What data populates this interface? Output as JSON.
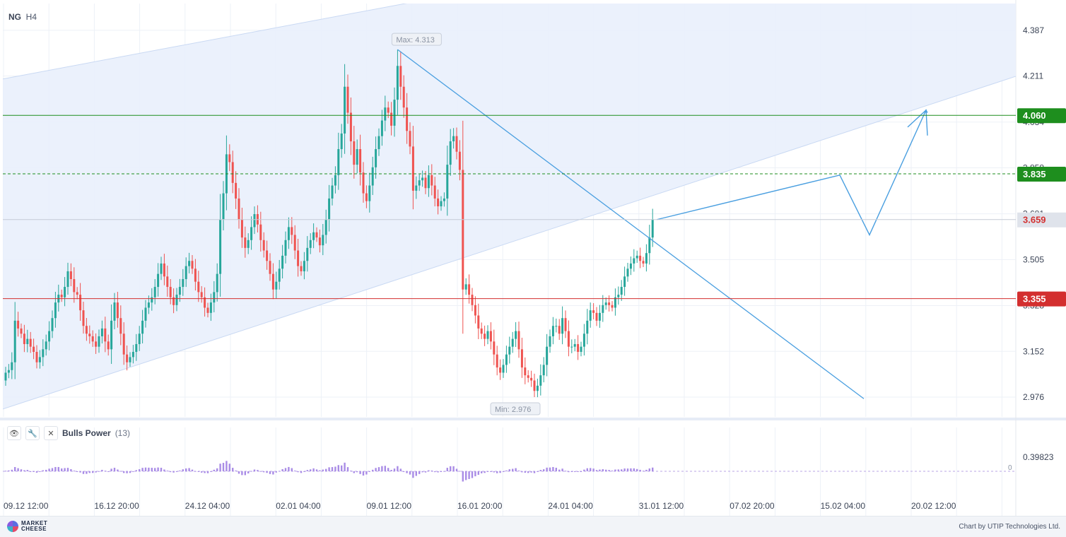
{
  "header": {
    "symbol": "NG",
    "timeframe": "H4"
  },
  "indicator": {
    "name": "Bulls Power",
    "param": "(13)",
    "eye_icon": "eye-icon",
    "settings_icon": "wrench-icon",
    "close_icon": "close-icon"
  },
  "footer": {
    "logo_line1": "MARKET",
    "logo_line2": "CHEESE",
    "credit": "Chart by UTIP Technologies Ltd."
  },
  "colors": {
    "up": "#26a69a",
    "down": "#ef5350",
    "channel": "#dbe6f8",
    "trend": "#4a9fe0",
    "support": "#d32f2f",
    "resistance": "#1e8e1e",
    "bulls": "#a98ce6"
  },
  "chart_data": [
    {
      "type": "candlestick",
      "price_axis": {
        "ticks": [
          "4.387",
          "4.211",
          "4.034",
          "3.858",
          "3.681",
          "3.505",
          "3.328",
          "3.152",
          "2.976"
        ],
        "range": [
          2.9,
          4.49
        ]
      },
      "time_axis": {
        "labels": [
          "09.12 12:00",
          "16.12 20:00",
          "24.12 04:00",
          "02.01 04:00",
          "09.01 12:00",
          "16.01 20:00",
          "24.01 04:00",
          "31.01 12:00",
          "07.02 20:00",
          "15.02 04:00",
          "20.02 12:00"
        ]
      },
      "close_series": [
        3.07,
        3.08,
        3.11,
        3.27,
        3.24,
        3.22,
        3.18,
        3.2,
        3.17,
        3.15,
        3.11,
        3.13,
        3.16,
        3.19,
        3.23,
        3.28,
        3.34,
        3.37,
        3.36,
        3.4,
        3.46,
        3.43,
        3.38,
        3.37,
        3.31,
        3.25,
        3.22,
        3.21,
        3.19,
        3.17,
        3.21,
        3.24,
        3.19,
        3.16,
        3.27,
        3.34,
        3.28,
        3.22,
        3.14,
        3.11,
        3.13,
        3.15,
        3.18,
        3.22,
        3.27,
        3.32,
        3.34,
        3.36,
        3.4,
        3.45,
        3.49,
        3.44,
        3.4,
        3.36,
        3.33,
        3.37,
        3.4,
        3.43,
        3.48,
        3.5,
        3.47,
        3.42,
        3.38,
        3.36,
        3.32,
        3.3,
        3.34,
        3.38,
        3.45,
        3.66,
        3.76,
        3.91,
        3.88,
        3.8,
        3.74,
        3.66,
        3.59,
        3.55,
        3.58,
        3.63,
        3.68,
        3.64,
        3.58,
        3.54,
        3.5,
        3.45,
        3.39,
        3.42,
        3.47,
        3.52,
        3.58,
        3.63,
        3.6,
        3.54,
        3.48,
        3.46,
        3.5,
        3.55,
        3.58,
        3.61,
        3.59,
        3.56,
        3.6,
        3.66,
        3.74,
        3.79,
        3.83,
        3.93,
        3.99,
        4.17,
        4.07,
        3.96,
        3.87,
        3.93,
        3.84,
        3.76,
        3.73,
        3.79,
        3.86,
        3.93,
        3.98,
        4.04,
        4.09,
        4.07,
        4.02,
        4.12,
        4.25,
        4.17,
        4.09,
        4.0,
        3.94,
        3.77,
        3.79,
        3.81,
        3.82,
        3.78,
        3.83,
        3.79,
        3.74,
        3.71,
        3.73,
        3.74,
        3.87,
        3.96,
        3.98,
        3.92,
        3.85,
        3.39,
        3.41,
        3.37,
        3.33,
        3.29,
        3.24,
        3.22,
        3.2,
        3.23,
        3.19,
        3.14,
        3.09,
        3.07,
        3.1,
        3.14,
        3.17,
        3.2,
        3.23,
        3.16,
        3.09,
        3.06,
        3.05,
        3.04,
        3.0,
        3.02,
        3.06,
        3.1,
        3.17,
        3.21,
        3.25,
        3.25,
        3.22,
        3.28,
        3.23,
        3.17,
        3.17,
        3.18,
        3.15,
        3.17,
        3.22,
        3.27,
        3.31,
        3.3,
        3.27,
        3.3,
        3.33,
        3.34,
        3.33,
        3.32,
        3.36,
        3.37,
        3.4,
        3.44,
        3.47,
        3.49,
        3.51,
        3.52,
        3.5,
        3.49,
        3.53,
        3.59,
        3.66
      ],
      "ohlc_sample": [
        {
          "label": "09.12 12:00",
          "open": 3.07,
          "high": 3.09,
          "low": 3.02,
          "close": 3.07
        },
        {
          "label": "16.01 20:00",
          "open": 4.12,
          "high": 4.313,
          "low": 4.1,
          "close": 4.25
        },
        {
          "label": "31.01 12:00",
          "open": 3.02,
          "high": 3.04,
          "low": 2.976,
          "close": 3.0
        }
      ],
      "markers": {
        "max_label": "Max: 4.313",
        "max_value": 4.313,
        "min_label": "Min: 2.976",
        "min_value": 2.976
      },
      "levels": [
        {
          "value": 4.06,
          "label": "4.060",
          "style": "solid",
          "color": "#1e8e1e"
        },
        {
          "value": 3.835,
          "label": "3.835",
          "style": "dashed",
          "color": "#1e8e1e"
        },
        {
          "value": 3.659,
          "label": "3.659",
          "style": "current",
          "color": "#d32f2f"
        },
        {
          "value": 3.355,
          "label": "3.355",
          "style": "solid",
          "color": "#d32f2f"
        }
      ],
      "channel": {
        "upper_start": 4.2,
        "upper_end": 4.93,
        "lower_start": 2.93,
        "lower_end": 4.21
      },
      "trendline": {
        "from": 4.313,
        "to": 2.97
      },
      "forecast_path": [
        3.659,
        3.83,
        3.6,
        4.08,
        4.07
      ],
      "grid": true
    },
    {
      "type": "bar",
      "title": "Bulls Power",
      "param": "(13)",
      "y_ticks": [
        "0.39823",
        "0"
      ],
      "range": [
        -0.12,
        0.4
      ],
      "grid": true
    }
  ]
}
